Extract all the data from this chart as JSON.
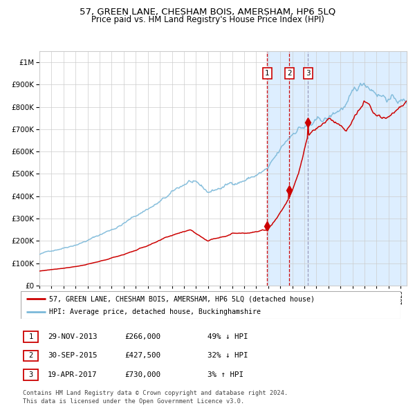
{
  "title": "57, GREEN LANE, CHESHAM BOIS, AMERSHAM, HP6 5LQ",
  "subtitle": "Price paid vs. HM Land Registry's House Price Index (HPI)",
  "title_fontsize": 9.5,
  "subtitle_fontsize": 8.5,
  "xlim_start": 1995.0,
  "xlim_end": 2025.5,
  "ylim_min": 0,
  "ylim_max": 1050000,
  "sale_dates_decimal": [
    2013.91,
    2015.75,
    2017.3
  ],
  "sale_prices": [
    266000,
    427500,
    730000
  ],
  "sale_labels": [
    "1",
    "2",
    "3"
  ],
  "legend_line1": "57, GREEN LANE, CHESHAM BOIS, AMERSHAM, HP6 5LQ (detached house)",
  "legend_line2": "HPI: Average price, detached house, Buckinghamshire",
  "table_data": [
    [
      "1",
      "29-NOV-2013",
      "£266,000",
      "49% ↓ HPI"
    ],
    [
      "2",
      "30-SEP-2015",
      "£427,500",
      "32% ↓ HPI"
    ],
    [
      "3",
      "19-APR-2017",
      "£730,000",
      "3% ↑ HPI"
    ]
  ],
  "footer": "Contains HM Land Registry data © Crown copyright and database right 2024.\nThis data is licensed under the Open Government Licence v3.0.",
  "hpi_color": "#7ab8d9",
  "price_color": "#cc0000",
  "vline_color_red": "#cc0000",
  "vline_color_gray": "#9999bb",
  "bg_highlight_color": "#ddeeff",
  "grid_color": "#cccccc",
  "white": "#ffffff"
}
